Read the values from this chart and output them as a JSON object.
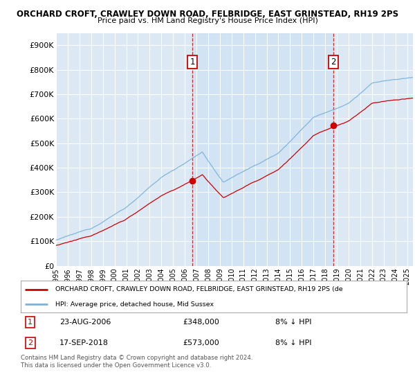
{
  "title_line1": "ORCHARD CROFT, CRAWLEY DOWN ROAD, FELBRIDGE, EAST GRINSTEAD, RH19 2PS",
  "title_line2": "Price paid vs. HM Land Registry's House Price Index (HPI)",
  "xlim_start": 1995.0,
  "xlim_end": 2025.5,
  "ylim_bottom": 0,
  "ylim_top": 950000,
  "yticks": [
    0,
    100000,
    200000,
    300000,
    400000,
    500000,
    600000,
    700000,
    800000,
    900000
  ],
  "ytick_labels": [
    "£0",
    "£100K",
    "£200K",
    "£300K",
    "£400K",
    "£500K",
    "£600K",
    "£700K",
    "£800K",
    "£900K"
  ],
  "xticks": [
    1995,
    1996,
    1997,
    1998,
    1999,
    2000,
    2001,
    2002,
    2003,
    2004,
    2005,
    2006,
    2007,
    2008,
    2009,
    2010,
    2011,
    2012,
    2013,
    2014,
    2015,
    2016,
    2017,
    2018,
    2019,
    2020,
    2021,
    2022,
    2023,
    2024,
    2025
  ],
  "hpi_color": "#7ab4d8",
  "price_color": "#cc0000",
  "shade_color": "#ddeeff",
  "marker1_x": 2006.646,
  "marker1_y": 348000,
  "marker2_x": 2018.714,
  "marker2_y": 573000,
  "legend_label_red": "ORCHARD CROFT, CRAWLEY DOWN ROAD, FELBRIDGE, EAST GRINSTEAD, RH19 2PS (de",
  "legend_label_blue": "HPI: Average price, detached house, Mid Sussex",
  "note1_label": "1",
  "note1_date": "23-AUG-2006",
  "note1_price": "£348,000",
  "note1_hpi": "8% ↓ HPI",
  "note2_label": "2",
  "note2_date": "17-SEP-2018",
  "note2_price": "£573,000",
  "note2_hpi": "8% ↓ HPI",
  "footer": "Contains HM Land Registry data © Crown copyright and database right 2024.\nThis data is licensed under the Open Government Licence v3.0.",
  "bg_color": "#ffffff",
  "plot_bg_color": "#dce9f5"
}
